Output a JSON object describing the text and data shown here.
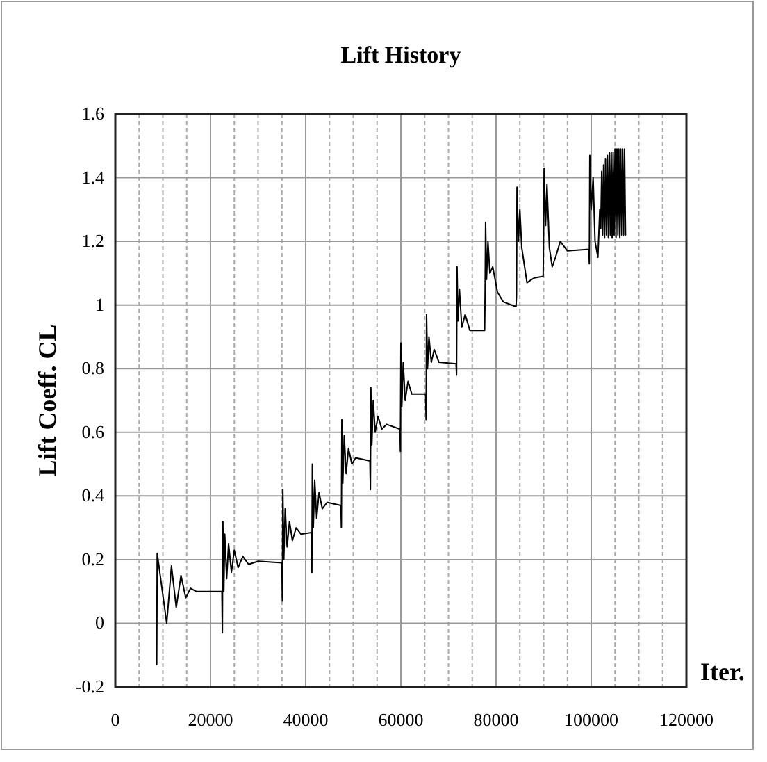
{
  "chart_data": {
    "type": "line",
    "title": "Lift History",
    "xlabel": "Iter.",
    "ylabel": "Lift Coeff. CL",
    "xlim": [
      0,
      120000
    ],
    "ylim": [
      -0.2,
      1.6
    ],
    "xticks": [
      0,
      {
        "value": 5000,
        "label": null
      },
      {
        "value": 10000,
        "label": null
      },
      {
        "value": 15000,
        "label": null
      },
      20000,
      {
        "value": 25000,
        "label": null
      },
      {
        "value": 30000,
        "label": null
      },
      {
        "value": 35000,
        "label": null
      },
      40000,
      {
        "value": 45000,
        "label": null
      },
      {
        "value": 50000,
        "label": null
      },
      {
        "value": 55000,
        "label": null
      },
      60000,
      {
        "value": 65000,
        "label": null
      },
      {
        "value": 70000,
        "label": null
      },
      {
        "value": 75000,
        "label": null
      },
      80000,
      {
        "value": 85000,
        "label": null
      },
      {
        "value": 90000,
        "label": null
      },
      {
        "value": 95000,
        "label": null
      },
      100000,
      {
        "value": 105000,
        "label": null
      },
      {
        "value": 110000,
        "label": null
      },
      {
        "value": 115000,
        "label": null
      },
      120000
    ],
    "yticks": [
      -0.2,
      0,
      0.2,
      0.4,
      0.6,
      0.8,
      1,
      1.2,
      1.4,
      1.6
    ],
    "grid": true,
    "marker": "none",
    "line_style": "solid",
    "series": [
      {
        "color": "#000000",
        "x": [
          8700,
          8800,
          10800,
          11800,
          12800,
          13800,
          14800,
          15800,
          17000,
          22400,
          22500,
          22600,
          22800,
          23000,
          23400,
          23800,
          24400,
          25000,
          25800,
          26800,
          28000,
          30000,
          35000,
          35100,
          35200,
          35400,
          35700,
          36100,
          36600,
          37200,
          38000,
          39000,
          41200,
          41300,
          41400,
          41600,
          41900,
          42300,
          42800,
          43500,
          44500,
          47400,
          47500,
          47600,
          47800,
          48100,
          48500,
          49000,
          49700,
          50500,
          53500,
          53600,
          53700,
          53900,
          54200,
          54600,
          55200,
          56000,
          57000,
          59800,
          59900,
          60000,
          60200,
          60500,
          60900,
          61500,
          62300,
          65200,
          65300,
          65400,
          65600,
          65900,
          66400,
          67000,
          68000,
          71600,
          71700,
          71800,
          72000,
          72300,
          72800,
          73500,
          74500,
          77600,
          77700,
          77800,
          78000,
          78300,
          78700,
          79300,
          80300,
          81500,
          84200,
          84300,
          84400,
          84700,
          85000,
          85400,
          86500,
          88000,
          89900,
          90000,
          90100,
          90400,
          90700,
          91200,
          91800,
          92500,
          93500,
          95000,
          99500,
          99600,
          99700,
          100000,
          100400,
          100800,
          101400,
          101800,
          102000,
          102200,
          102400,
          102600,
          102800,
          103000,
          103200,
          103400,
          103600,
          103800,
          104000,
          104200,
          104400,
          104600,
          104800,
          105000,
          105200,
          105400,
          105600,
          105800,
          106000,
          106200,
          106400,
          106600,
          106800,
          107000,
          107200
        ],
        "values": [
          -0.13,
          0.22,
          0.0,
          0.18,
          0.05,
          0.15,
          0.08,
          0.11,
          0.1,
          0.1,
          -0.03,
          0.32,
          0.1,
          0.28,
          0.14,
          0.25,
          0.16,
          0.23,
          0.175,
          0.21,
          0.185,
          0.195,
          0.19,
          0.07,
          0.42,
          0.2,
          0.36,
          0.24,
          0.32,
          0.26,
          0.3,
          0.28,
          0.285,
          0.16,
          0.5,
          0.3,
          0.45,
          0.33,
          0.41,
          0.36,
          0.38,
          0.37,
          0.3,
          0.64,
          0.44,
          0.59,
          0.47,
          0.55,
          0.5,
          0.52,
          0.51,
          0.42,
          0.74,
          0.56,
          0.7,
          0.6,
          0.65,
          0.61,
          0.625,
          0.61,
          0.54,
          0.88,
          0.68,
          0.82,
          0.7,
          0.76,
          0.72,
          0.72,
          0.64,
          0.97,
          0.8,
          0.9,
          0.82,
          0.86,
          0.82,
          0.815,
          0.78,
          1.12,
          0.95,
          1.05,
          0.93,
          0.97,
          0.92,
          0.92,
          1.04,
          1.26,
          1.08,
          1.2,
          1.1,
          1.12,
          1.04,
          1.01,
          0.995,
          1.03,
          1.37,
          1.2,
          1.3,
          1.18,
          1.07,
          1.085,
          1.09,
          1.24,
          1.43,
          1.25,
          1.38,
          1.18,
          1.12,
          1.15,
          1.2,
          1.17,
          1.175,
          1.13,
          1.47,
          1.3,
          1.4,
          1.2,
          1.15,
          1.3,
          1.24,
          1.42,
          1.22,
          1.44,
          1.21,
          1.46,
          1.22,
          1.47,
          1.21,
          1.48,
          1.22,
          1.48,
          1.21,
          1.48,
          1.22,
          1.49,
          1.21,
          1.49,
          1.22,
          1.49,
          1.21,
          1.49,
          1.22,
          1.49,
          1.22,
          1.49,
          1.22
        ]
      }
    ]
  }
}
